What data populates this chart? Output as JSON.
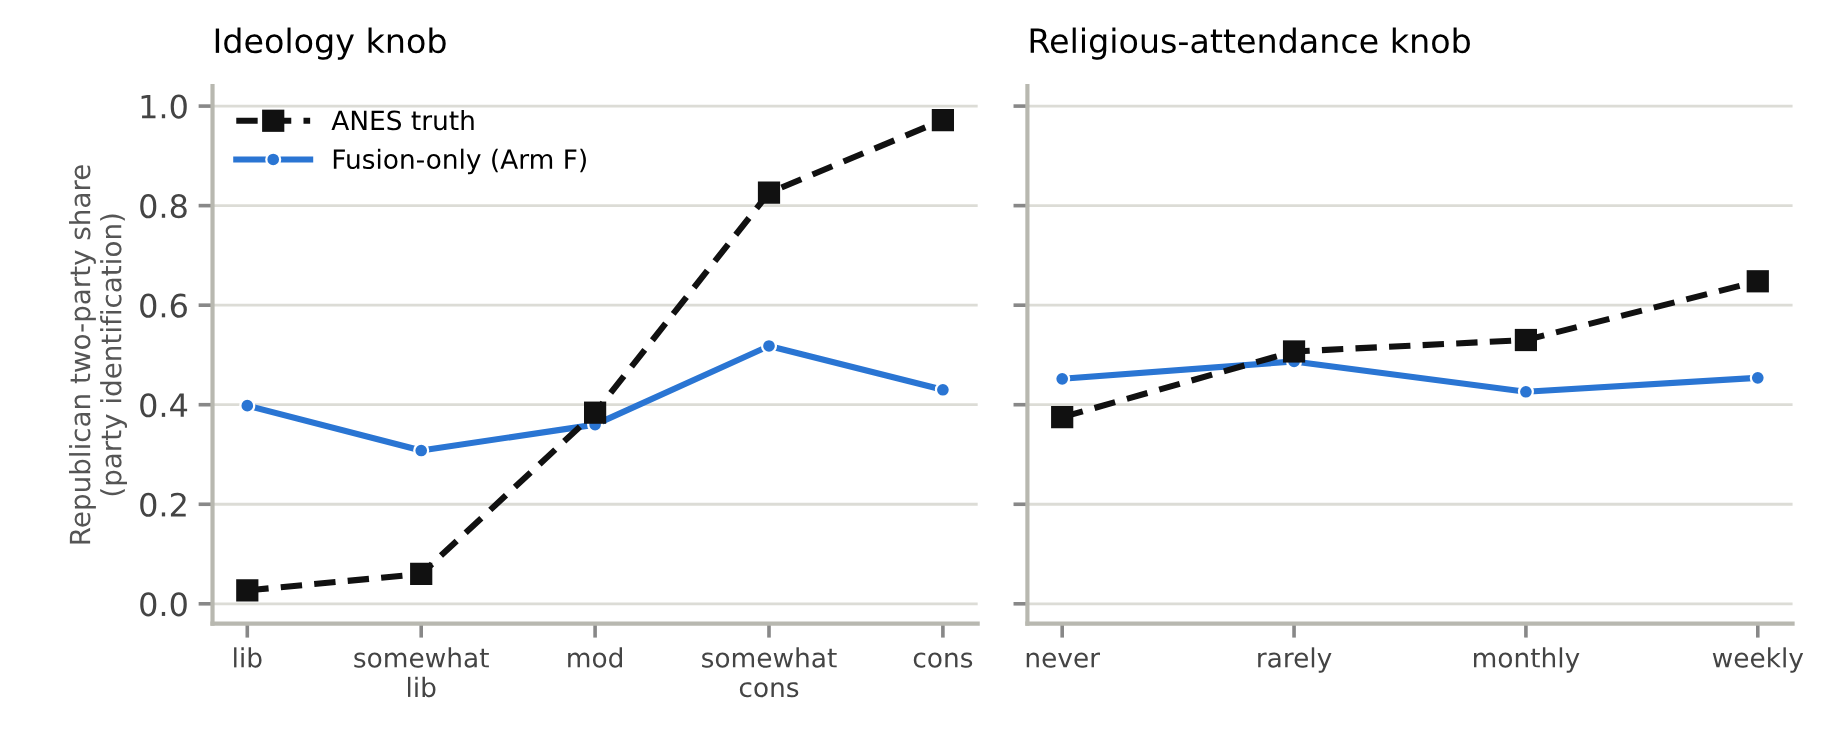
{
  "chart_data": [
    {
      "type": "line",
      "title": "Ideology knob",
      "ylabel": "Republican two-party share\n(party identification)",
      "categories": [
        "lib",
        "somewhat\nlib",
        "mod",
        "somewhat\ncons",
        "cons"
      ],
      "ylim": [
        -0.04,
        1.04
      ],
      "yticks": [
        {
          "value": 0,
          "label": "0.0"
        },
        0.2,
        0.4,
        0.6,
        0.8,
        {
          "value": 1,
          "label": "1.0"
        }
      ],
      "grid": "y",
      "legend": "top left",
      "series": [
        {
          "name": "ANES truth",
          "color": "#111111",
          "marker": "square",
          "line_style": "dashed",
          "values": [
            0.027,
            0.06,
            0.384,
            0.826,
            0.972
          ]
        },
        {
          "name": "Fusion-only (Arm F)",
          "color": "#2a75d3",
          "marker": "circle",
          "line_style": "solid",
          "values": [
            0.398,
            0.308,
            0.36,
            0.518,
            0.43
          ]
        }
      ]
    },
    {
      "type": "line",
      "title": "Religious-attendance knob",
      "categories": [
        "never",
        "rarely",
        "monthly",
        "weekly"
      ],
      "ylim": [
        -0.04,
        1.04
      ],
      "yticks": [
        0,
        0.2,
        0.4,
        0.6,
        0.8,
        1
      ],
      "grid": "y",
      "tick_labels": "x",
      "series": [
        {
          "color": "#111111",
          "marker": "square",
          "line_style": "dashed",
          "values": [
            0.375,
            0.507,
            0.53,
            0.648
          ]
        },
        {
          "color": "#2a75d3",
          "marker": "circle",
          "line_style": "solid",
          "values": [
            0.452,
            0.487,
            0.426,
            0.454
          ]
        }
      ]
    }
  ]
}
